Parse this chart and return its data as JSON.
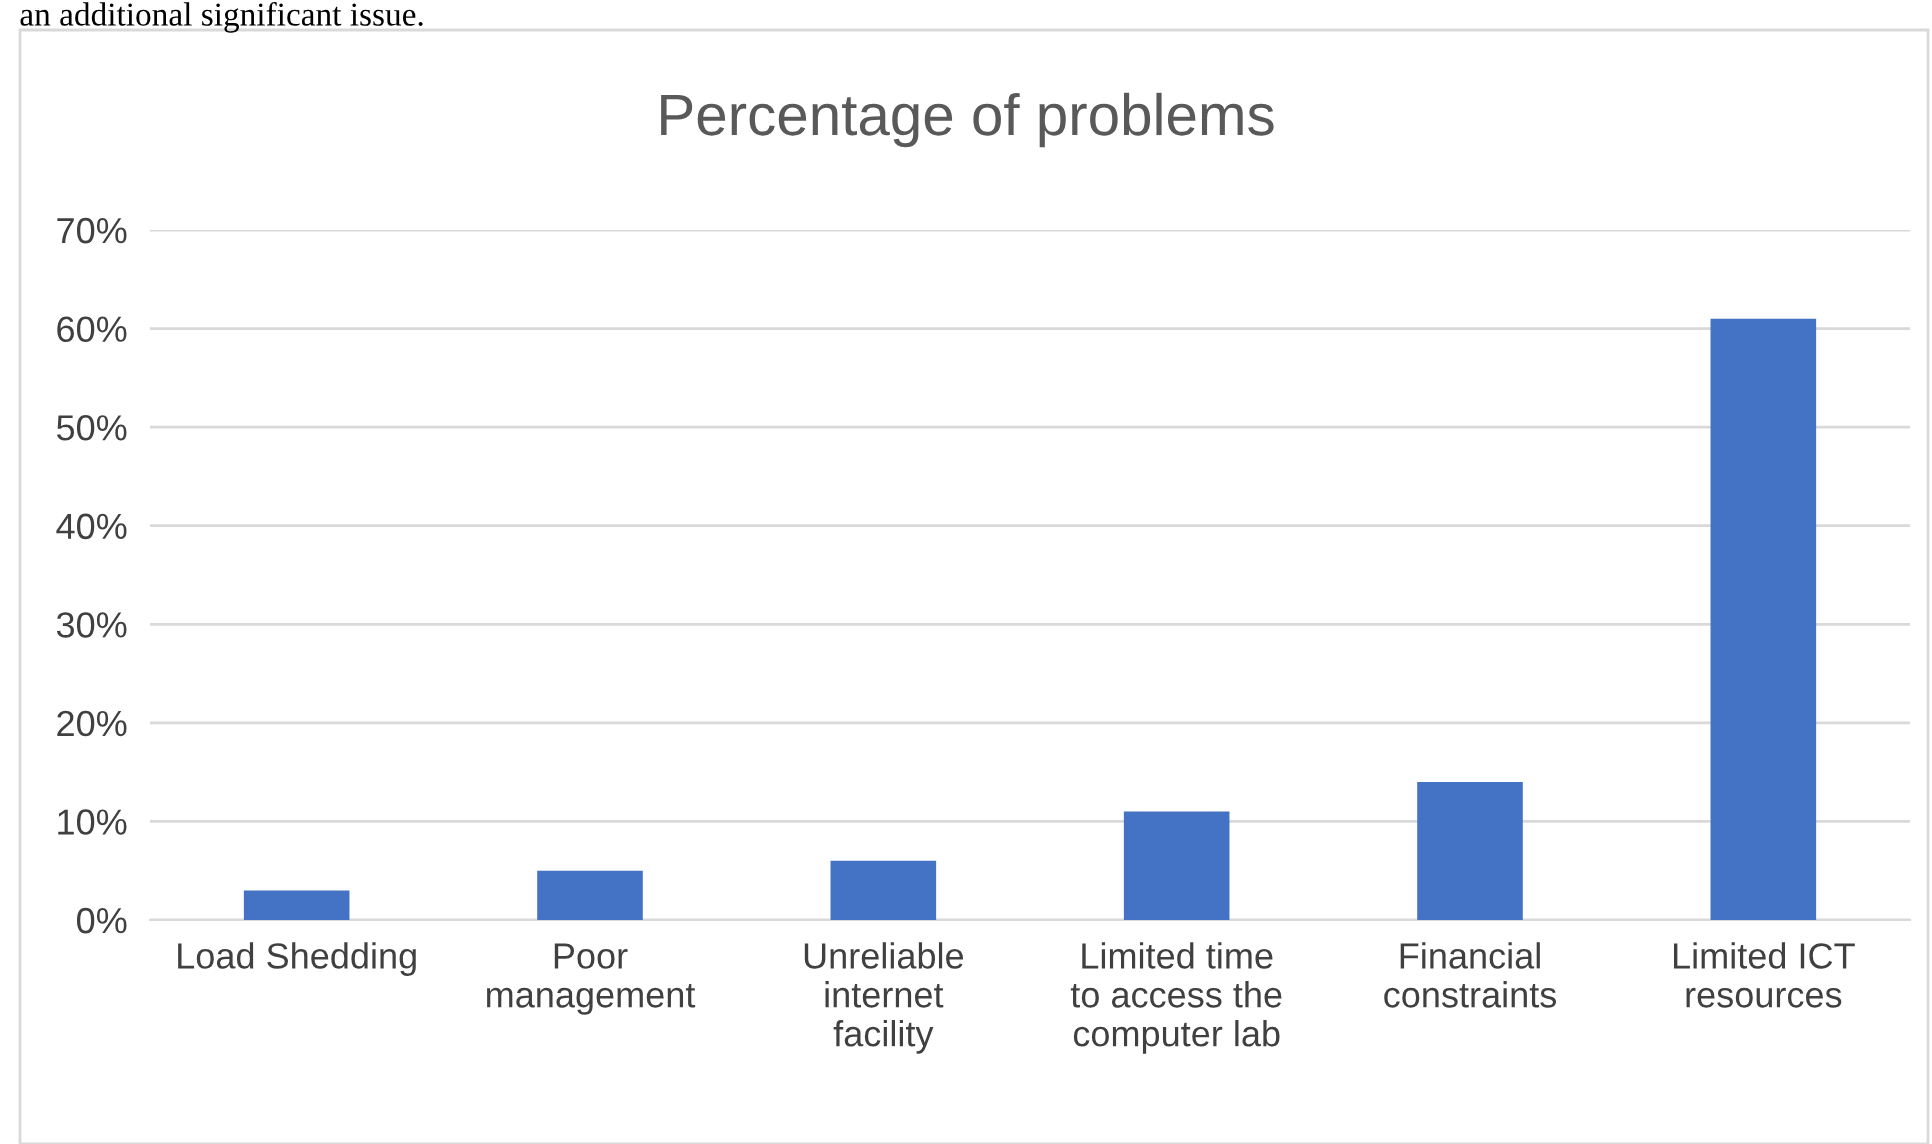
{
  "chart_data": {
    "type": "bar",
    "title": "Percentage of problems",
    "categories": [
      "Load Shedding",
      "Poor\nmanagement",
      "Unreliable\ninternet\nfacility",
      "Limited time\nto access the\ncomputer lab",
      "Financial\nconstraints",
      "Limited ICT\nresources"
    ],
    "values": [
      3,
      5,
      6,
      11,
      14,
      61
    ],
    "color": "#4472c4",
    "ylim": [
      0,
      70
    ],
    "yticks": [
      {
        "value": 0,
        "label": "0%"
      },
      {
        "value": 10,
        "label": "10%"
      },
      {
        "value": 20,
        "label": "20%"
      },
      {
        "value": 30,
        "label": "30%"
      },
      {
        "value": 40,
        "label": "40%"
      },
      {
        "value": 50,
        "label": "50%"
      },
      {
        "value": 60,
        "label": "60%"
      },
      {
        "value": 70,
        "label": "70%"
      }
    ],
    "grid": "y",
    "legend": false,
    "annotations": [
      "an additional significant issue."
    ]
  }
}
